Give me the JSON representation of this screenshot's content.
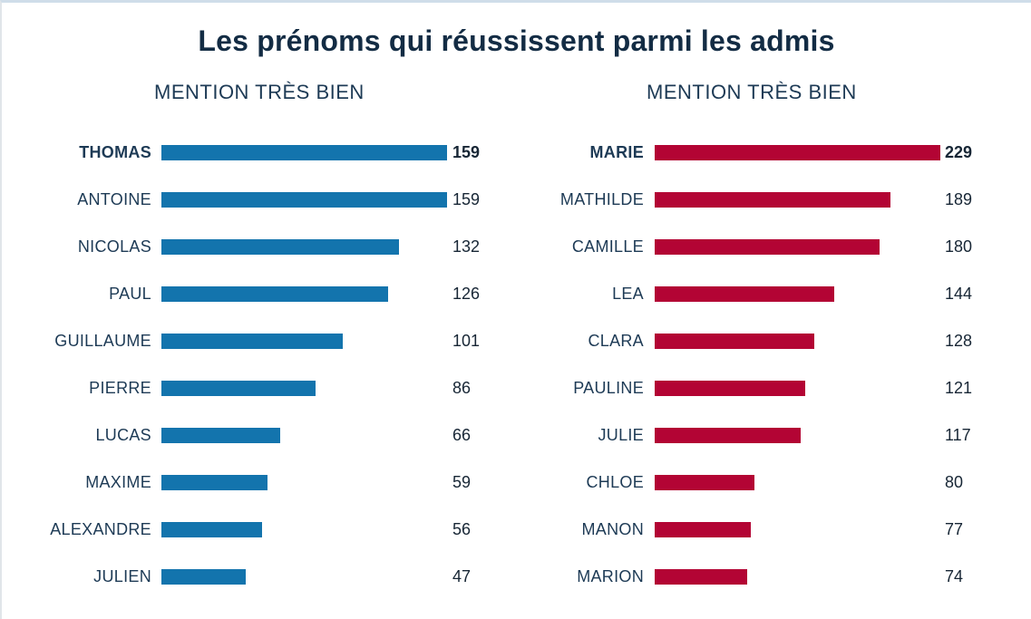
{
  "page": {
    "title": "Les prénoms qui réussissent parmi les admis"
  },
  "colors": {
    "title_text": "#132c44",
    "header_text": "#1d3a55",
    "label_text": "#1d3a55",
    "value_text": "#172635",
    "blue_bar": "#1374ad",
    "red_bar": "#b30434",
    "top_border": "#cfdde9",
    "left_border": "#e0e5e9"
  },
  "chart_data": [
    {
      "type": "bar",
      "orientation": "horizontal",
      "title": "MENTION TRÈS BIEN",
      "categories": [
        "THOMAS",
        "ANTOINE",
        "NICOLAS",
        "PAUL",
        "GUILLAUME",
        "PIERRE",
        "LUCAS",
        "MAXIME",
        "ALEXANDRE",
        "JULIEN"
      ],
      "values": [
        159,
        159,
        132,
        126,
        101,
        86,
        66,
        59,
        56,
        47
      ],
      "bar_color": "#1374ad",
      "value_labels_shown": true,
      "highlight_index": 0,
      "xlim": [
        0,
        159
      ],
      "grid": false,
      "legend": false
    },
    {
      "type": "bar",
      "orientation": "horizontal",
      "title": "MENTION TRÈS BIEN",
      "categories": [
        "MARIE",
        "MATHILDE",
        "CAMILLE",
        "LEA",
        "CLARA",
        "PAULINE",
        "JULIE",
        "CHLOE",
        "MANON",
        "MARION"
      ],
      "values": [
        229,
        189,
        180,
        144,
        128,
        121,
        117,
        80,
        77,
        74
      ],
      "bar_color": "#b30434",
      "value_labels_shown": true,
      "highlight_index": 0,
      "xlim": [
        0,
        229
      ],
      "grid": false,
      "legend": false
    }
  ]
}
